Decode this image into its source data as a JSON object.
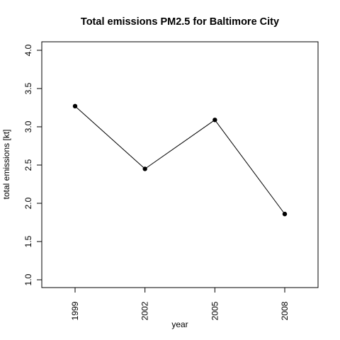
{
  "chart_data": {
    "type": "line",
    "title": "Total emissions PM2.5 for Baltimore City",
    "xlabel": "year",
    "ylabel": "total emissions [kt]",
    "categories": [
      "1999",
      "2002",
      "2005",
      "2008"
    ],
    "x": [
      1999,
      2002,
      2005,
      2008
    ],
    "series": [
      {
        "values": [
          3.27,
          2.45,
          3.09,
          1.86
        ]
      }
    ],
    "ylim": [
      1.0,
      4.0
    ],
    "yticks": [
      "1.0",
      "1.5",
      "2.0",
      "2.5",
      "3.0",
      "3.5",
      "4.0"
    ],
    "grid": false,
    "legend": "none",
    "colors": {
      "line": "#000000",
      "point": "#000000",
      "frame": "#000000"
    }
  }
}
